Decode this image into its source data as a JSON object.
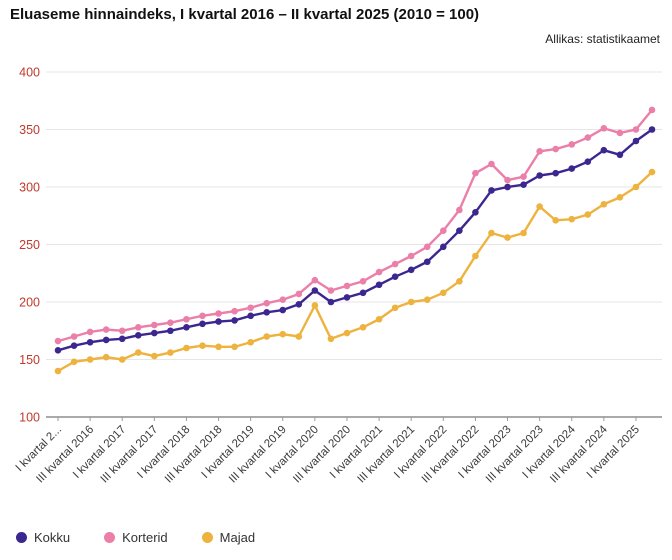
{
  "header": {
    "title": "Eluaseme hinnaindeks, I kvartal 2016 – II kvartal 2025 (2010 = 100)",
    "source": "Allikas: statistikaamet"
  },
  "legend": [
    {
      "label": "Kokku",
      "color": "#3b278f"
    },
    {
      "label": "Korterid",
      "color": "#ec7fa9"
    },
    {
      "label": "Majad",
      "color": "#eeb23e"
    }
  ],
  "chart_data": {
    "type": "line",
    "title": "Eluaseme hinnaindeks, I kvartal 2016 – II kvartal 2025 (2010 = 100)",
    "source": "Allikas: statistikaamet",
    "n_points": 38,
    "x_range_note": "quarterly from I kvartal 2016 to II kvartal 2025",
    "x_tick_indices": [
      0,
      2,
      4,
      6,
      8,
      10,
      12,
      14,
      16,
      18,
      20,
      22,
      24,
      26,
      28,
      30,
      32,
      34,
      36
    ],
    "x_tick_labels": [
      "I kvartal 2...",
      "III kvartal 2016",
      "I kvartal 2017",
      "III kvartal 2017",
      "I kvartal 2018",
      "III kvartal 2018",
      "I kvartal 2019",
      "III kvartal 2019",
      "I kvartal 2020",
      "III kvartal 2020",
      "I kvartal 2021",
      "III kvartal 2021",
      "I kvartal 2022",
      "III kvartal 2022",
      "I kvartal 2023",
      "III kvartal 2023",
      "I kvartal 2024",
      "III kvartal 2024",
      "I kvartal 2025"
    ],
    "ylim": [
      100,
      400
    ],
    "y_ticks": [
      100,
      150,
      200,
      250,
      300,
      350,
      400
    ],
    "y_label_color": "#c0392b",
    "x_label_color": "#3a3a3a",
    "grid_color": "#e6e6e6",
    "axis_color": "#555555",
    "grid": true,
    "legend_position": "bottom-left",
    "series": [
      {
        "name": "Majad",
        "color": "#eeb23e",
        "values": [
          140,
          148,
          150,
          152,
          150,
          156,
          153,
          156,
          160,
          162,
          161,
          161,
          165,
          170,
          172,
          170,
          197,
          168,
          173,
          178,
          185,
          195,
          200,
          202,
          208,
          218,
          240,
          260,
          256,
          260,
          283,
          271,
          272,
          276,
          285,
          291,
          300,
          313
        ]
      },
      {
        "name": "Korterid",
        "color": "#ec7fa9",
        "values": [
          166,
          170,
          174,
          176,
          175,
          178,
          180,
          182,
          185,
          188,
          190,
          192,
          195,
          199,
          202,
          207,
          219,
          210,
          214,
          218,
          226,
          233,
          240,
          248,
          262,
          280,
          312,
          320,
          306,
          309,
          331,
          333,
          337,
          343,
          351,
          347,
          350,
          367
        ]
      },
      {
        "name": "Kokku",
        "color": "#3b278f",
        "values": [
          158,
          162,
          165,
          167,
          168,
          171,
          173,
          175,
          178,
          181,
          183,
          184,
          188,
          191,
          193,
          198,
          210,
          200,
          204,
          208,
          215,
          222,
          228,
          235,
          248,
          262,
          278,
          297,
          300,
          302,
          310,
          312,
          316,
          322,
          332,
          328,
          340,
          350
        ]
      }
    ]
  }
}
